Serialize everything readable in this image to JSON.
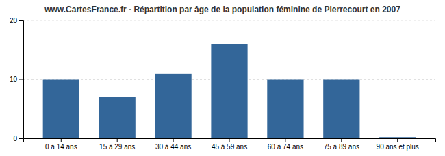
{
  "chart_data": {
    "type": "bar",
    "title": "www.CartesFrance.fr - Répartition par âge de la population féminine de Pierrecourt en 2007",
    "categories": [
      "0 à 14 ans",
      "15 à 29 ans",
      "30 à 44 ans",
      "45 à 59 ans",
      "60 à 74 ans",
      "75 à 89 ans",
      "90 ans et plus"
    ],
    "values": [
      10,
      7,
      11,
      16,
      10,
      10,
      0.2
    ],
    "color": "#336699",
    "ylim": [
      0,
      20
    ],
    "yticks": [
      0,
      10,
      20
    ],
    "grid": true
  }
}
